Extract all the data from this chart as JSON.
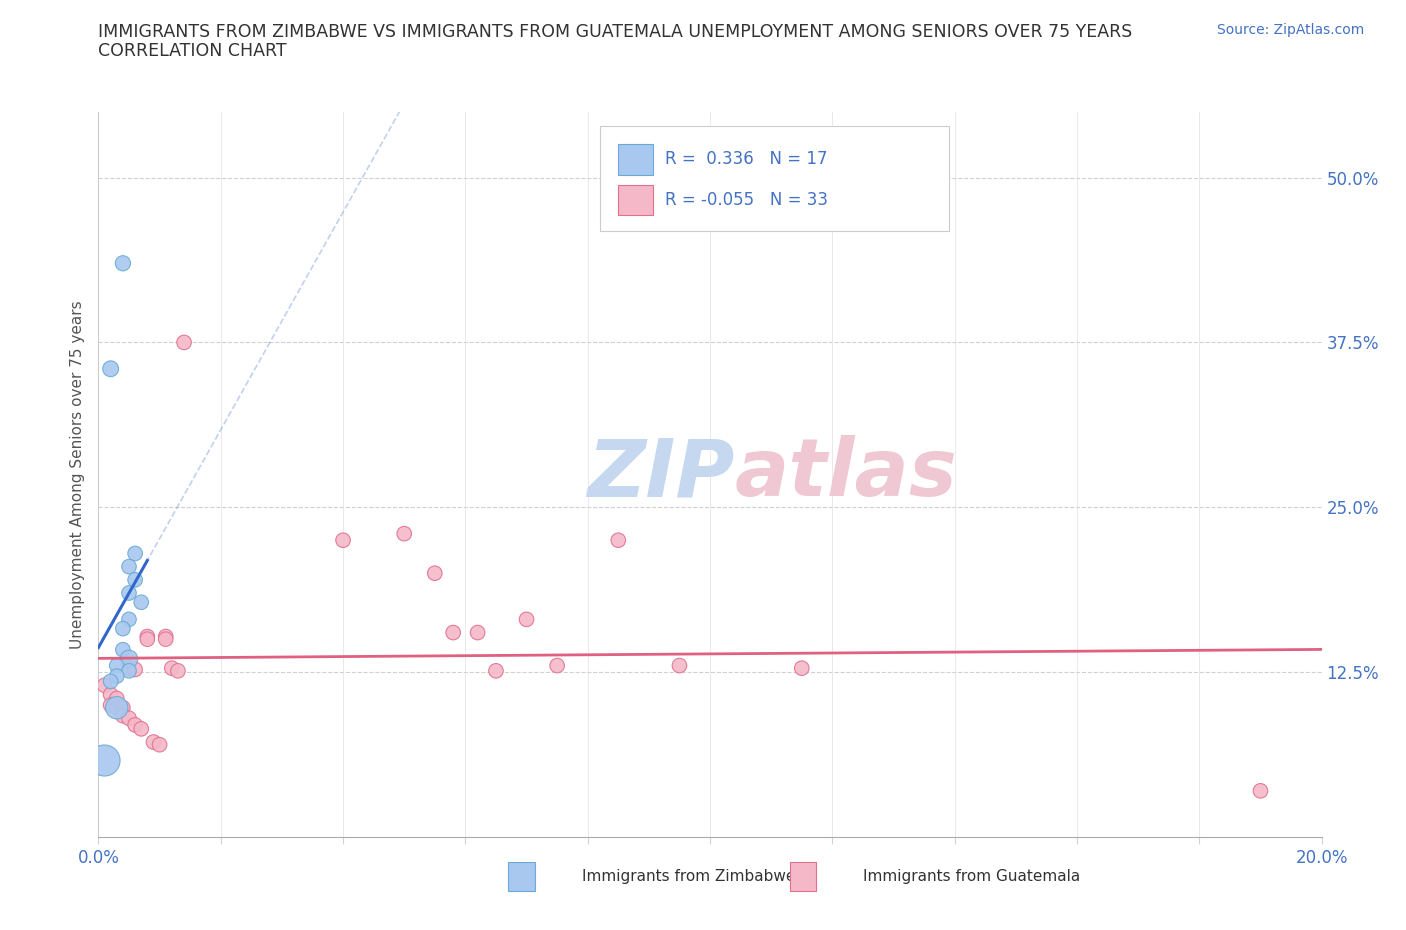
{
  "title_line1": "IMMIGRANTS FROM ZIMBABWE VS IMMIGRANTS FROM GUATEMALA UNEMPLOYMENT AMONG SENIORS OVER 75 YEARS",
  "title_line2": "CORRELATION CHART",
  "source": "Source: ZipAtlas.com",
  "ylabel": "Unemployment Among Seniors over 75 years",
  "xlim": [
    0.0,
    0.2
  ],
  "ylim": [
    0.0,
    0.55
  ],
  "yticks": [
    0.0,
    0.125,
    0.25,
    0.375,
    0.5
  ],
  "ytick_labels_right": [
    "",
    "12.5%",
    "25.0%",
    "37.5%",
    "50.0%"
  ],
  "xticks": [
    0.0,
    0.02,
    0.04,
    0.06,
    0.08,
    0.1,
    0.12,
    0.14,
    0.16,
    0.18,
    0.2
  ],
  "r_zimbabwe": 0.336,
  "n_zimbabwe": 17,
  "r_guatemala": -0.055,
  "n_guatemala": 33,
  "zimbabwe_color": "#a8c8f0",
  "zimbabwe_edge": "#6aaad4",
  "zimbabwe_line_color": "#3366cc",
  "guatemala_color": "#f5b8c8",
  "guatemala_edge": "#e07090",
  "guatemala_line_color": "#e06080",
  "watermark_zim": "ZIP",
  "watermark_atl": "atlas",
  "watermark_color_blue": "#c5d8ef",
  "watermark_color_pink": "#f0c8d4",
  "zimbabwe_points": [
    [
      0.004,
      0.435
    ],
    [
      0.002,
      0.355
    ],
    [
      0.006,
      0.215
    ],
    [
      0.005,
      0.205
    ],
    [
      0.006,
      0.195
    ],
    [
      0.005,
      0.185
    ],
    [
      0.007,
      0.178
    ],
    [
      0.005,
      0.165
    ],
    [
      0.004,
      0.158
    ],
    [
      0.004,
      0.142
    ],
    [
      0.005,
      0.135
    ],
    [
      0.003,
      0.13
    ],
    [
      0.005,
      0.126
    ],
    [
      0.003,
      0.122
    ],
    [
      0.002,
      0.118
    ],
    [
      0.003,
      0.098
    ],
    [
      0.001,
      0.058
    ]
  ],
  "zimbabwe_sizes": [
    120,
    130,
    110,
    110,
    110,
    110,
    110,
    110,
    110,
    110,
    160,
    110,
    110,
    110,
    110,
    260,
    500
  ],
  "guatemala_points": [
    [
      0.001,
      0.115
    ],
    [
      0.002,
      0.108
    ],
    [
      0.003,
      0.105
    ],
    [
      0.002,
      0.1
    ],
    [
      0.003,
      0.098
    ],
    [
      0.004,
      0.098
    ],
    [
      0.004,
      0.092
    ],
    [
      0.005,
      0.09
    ],
    [
      0.005,
      0.128
    ],
    [
      0.006,
      0.127
    ],
    [
      0.006,
      0.085
    ],
    [
      0.007,
      0.082
    ],
    [
      0.008,
      0.152
    ],
    [
      0.008,
      0.15
    ],
    [
      0.009,
      0.072
    ],
    [
      0.01,
      0.07
    ],
    [
      0.011,
      0.152
    ],
    [
      0.011,
      0.15
    ],
    [
      0.012,
      0.128
    ],
    [
      0.013,
      0.126
    ],
    [
      0.014,
      0.375
    ],
    [
      0.04,
      0.225
    ],
    [
      0.05,
      0.23
    ],
    [
      0.055,
      0.2
    ],
    [
      0.058,
      0.155
    ],
    [
      0.062,
      0.155
    ],
    [
      0.065,
      0.126
    ],
    [
      0.07,
      0.165
    ],
    [
      0.075,
      0.13
    ],
    [
      0.085,
      0.225
    ],
    [
      0.095,
      0.13
    ],
    [
      0.115,
      0.128
    ],
    [
      0.19,
      0.035
    ]
  ],
  "guatemala_sizes": [
    110,
    110,
    110,
    110,
    110,
    110,
    110,
    110,
    110,
    110,
    110,
    110,
    110,
    110,
    110,
    110,
    110,
    110,
    110,
    110,
    110,
    110,
    110,
    110,
    110,
    110,
    110,
    110,
    110,
    110,
    110,
    110,
    110
  ]
}
